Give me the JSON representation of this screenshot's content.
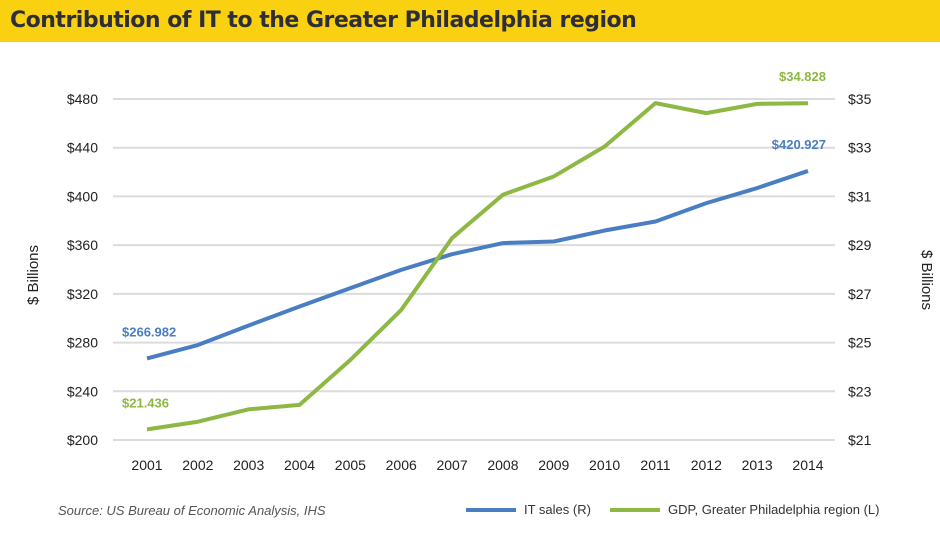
{
  "title": "Contribution of IT to the Greater Philadelphia region",
  "source": "Source: US Bureau of Economic Analysis, IHS",
  "chart_data": {
    "type": "line",
    "title": "Contribution of IT to the Greater Philadelphia region",
    "x": [
      "2001",
      "2002",
      "2003",
      "2004",
      "2005",
      "2006",
      "2007",
      "2008",
      "2009",
      "2010",
      "2011",
      "2012",
      "2013",
      "2014"
    ],
    "left_axis": {
      "label": "$ Billions",
      "ylim": [
        200,
        480
      ],
      "ticks": [
        "$200",
        "$240",
        "$280",
        "$320",
        "$360",
        "$400",
        "$440",
        "$480"
      ],
      "tick_values": [
        200,
        240,
        280,
        320,
        360,
        400,
        440,
        480
      ]
    },
    "right_axis": {
      "label": "$ Billions",
      "ylim": [
        21,
        35
      ],
      "ticks": [
        "$21",
        "$23",
        "$25",
        "$27",
        "$29",
        "$31",
        "$33",
        "$35"
      ],
      "tick_values": [
        21,
        23,
        25,
        27,
        29,
        31,
        33,
        35
      ]
    },
    "grid": true,
    "legend_position": "bottom-right",
    "series": [
      {
        "name": "IT sales (R)",
        "color": "#4A7EC2",
        "axis": "left",
        "values": [
          266.982,
          278,
          294,
          309.6,
          324.7,
          339.7,
          352.6,
          361.7,
          363,
          372,
          379.4,
          394.5,
          406.9,
          420.927
        ],
        "labels": [
          {
            "index": 0,
            "text": "$266.982"
          },
          {
            "index": 13,
            "text": "$420.927"
          }
        ]
      },
      {
        "name": "GDP, Greater Philadelphia region (L)",
        "color": "#8DB843",
        "axis": "right",
        "values": [
          21.436,
          21.75,
          22.26,
          22.44,
          24.29,
          26.34,
          29.29,
          31.07,
          31.82,
          33.05,
          34.83,
          34.42,
          34.8,
          34.828
        ],
        "labels": [
          {
            "index": 0,
            "text": "$21.436"
          },
          {
            "index": 13,
            "text": "$34.828"
          }
        ]
      }
    ]
  }
}
